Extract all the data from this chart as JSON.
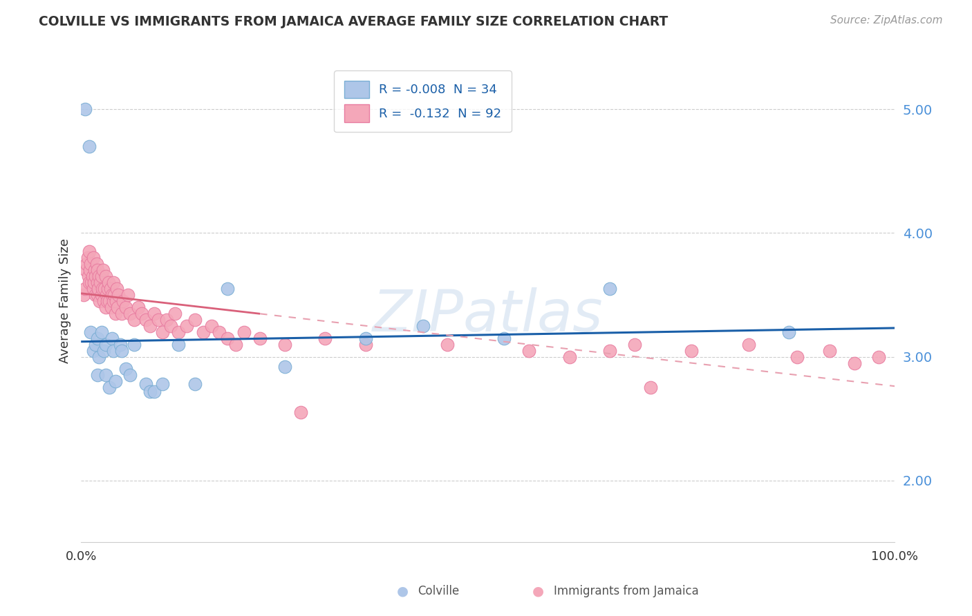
{
  "title": "COLVILLE VS IMMIGRANTS FROM JAMAICA AVERAGE FAMILY SIZE CORRELATION CHART",
  "source": "Source: ZipAtlas.com",
  "ylabel": "Average Family Size",
  "xlim": [
    0,
    1.0
  ],
  "ylim": [
    1.5,
    5.4
  ],
  "yticks": [
    2.0,
    3.0,
    4.0,
    5.0
  ],
  "xticks": [
    0.0,
    1.0
  ],
  "xticklabels": [
    "0.0%",
    "100.0%"
  ],
  "background_color": "#ffffff",
  "grid_color": "#cccccc",
  "colville_color": "#aec6e8",
  "colville_edge_color": "#7aaed4",
  "jamaica_color": "#f4a7b9",
  "jamaica_edge_color": "#e87ca0",
  "colville_line_color": "#1a5fa8",
  "jamaica_line_solid_color": "#d9607a",
  "jamaica_line_dash_color": "#e8a0b0",
  "legend_label1": "R = -0.008  N = 34",
  "legend_label2": "R =  -0.132  N = 92",
  "colville_points_x": [
    0.005,
    0.01,
    0.012,
    0.015,
    0.018,
    0.02,
    0.02,
    0.022,
    0.025,
    0.028,
    0.03,
    0.03,
    0.035,
    0.038,
    0.04,
    0.042,
    0.048,
    0.05,
    0.055,
    0.06,
    0.065,
    0.08,
    0.085,
    0.09,
    0.1,
    0.12,
    0.14,
    0.18,
    0.25,
    0.35,
    0.42,
    0.52,
    0.65,
    0.87
  ],
  "colville_points_y": [
    5.0,
    4.7,
    3.2,
    3.05,
    3.1,
    3.15,
    2.85,
    3.0,
    3.2,
    3.05,
    2.85,
    3.1,
    2.75,
    3.15,
    3.05,
    2.8,
    3.1,
    3.05,
    2.9,
    2.85,
    3.1,
    2.78,
    2.72,
    2.72,
    2.78,
    3.1,
    2.78,
    3.55,
    2.92,
    3.15,
    3.25,
    3.15,
    3.55,
    3.2
  ],
  "jamaica_points_x": [
    0.003,
    0.005,
    0.006,
    0.007,
    0.008,
    0.009,
    0.01,
    0.01,
    0.011,
    0.012,
    0.013,
    0.014,
    0.015,
    0.015,
    0.016,
    0.017,
    0.018,
    0.018,
    0.019,
    0.02,
    0.02,
    0.02,
    0.021,
    0.022,
    0.023,
    0.024,
    0.025,
    0.025,
    0.026,
    0.027,
    0.028,
    0.029,
    0.03,
    0.03,
    0.031,
    0.032,
    0.033,
    0.034,
    0.035,
    0.036,
    0.037,
    0.038,
    0.04,
    0.04,
    0.041,
    0.042,
    0.043,
    0.044,
    0.045,
    0.046,
    0.05,
    0.052,
    0.055,
    0.058,
    0.06,
    0.065,
    0.07,
    0.075,
    0.08,
    0.085,
    0.09,
    0.095,
    0.1,
    0.105,
    0.11,
    0.115,
    0.12,
    0.13,
    0.14,
    0.15,
    0.16,
    0.17,
    0.18,
    0.19,
    0.2,
    0.22,
    0.25,
    0.27,
    0.3,
    0.35,
    0.45,
    0.55,
    0.6,
    0.65,
    0.68,
    0.7,
    0.75,
    0.82,
    0.88,
    0.92,
    0.95,
    0.98
  ],
  "jamaica_points_y": [
    3.5,
    3.55,
    3.7,
    3.75,
    3.8,
    3.65,
    3.6,
    3.85,
    3.7,
    3.75,
    3.6,
    3.65,
    3.8,
    3.55,
    3.6,
    3.7,
    3.5,
    3.65,
    3.75,
    3.5,
    3.6,
    3.7,
    3.55,
    3.65,
    3.45,
    3.6,
    3.5,
    3.65,
    3.55,
    3.7,
    3.45,
    3.55,
    3.4,
    3.65,
    3.5,
    3.45,
    3.55,
    3.6,
    3.45,
    3.55,
    3.4,
    3.5,
    3.45,
    3.6,
    3.5,
    3.35,
    3.45,
    3.55,
    3.4,
    3.5,
    3.35,
    3.45,
    3.4,
    3.5,
    3.35,
    3.3,
    3.4,
    3.35,
    3.3,
    3.25,
    3.35,
    3.3,
    3.2,
    3.3,
    3.25,
    3.35,
    3.2,
    3.25,
    3.3,
    3.2,
    3.25,
    3.2,
    3.15,
    3.1,
    3.2,
    3.15,
    3.1,
    2.55,
    3.15,
    3.1,
    3.1,
    3.05,
    3.0,
    3.05,
    3.1,
    2.75,
    3.05,
    3.1,
    3.0,
    3.05,
    2.95,
    3.0
  ]
}
